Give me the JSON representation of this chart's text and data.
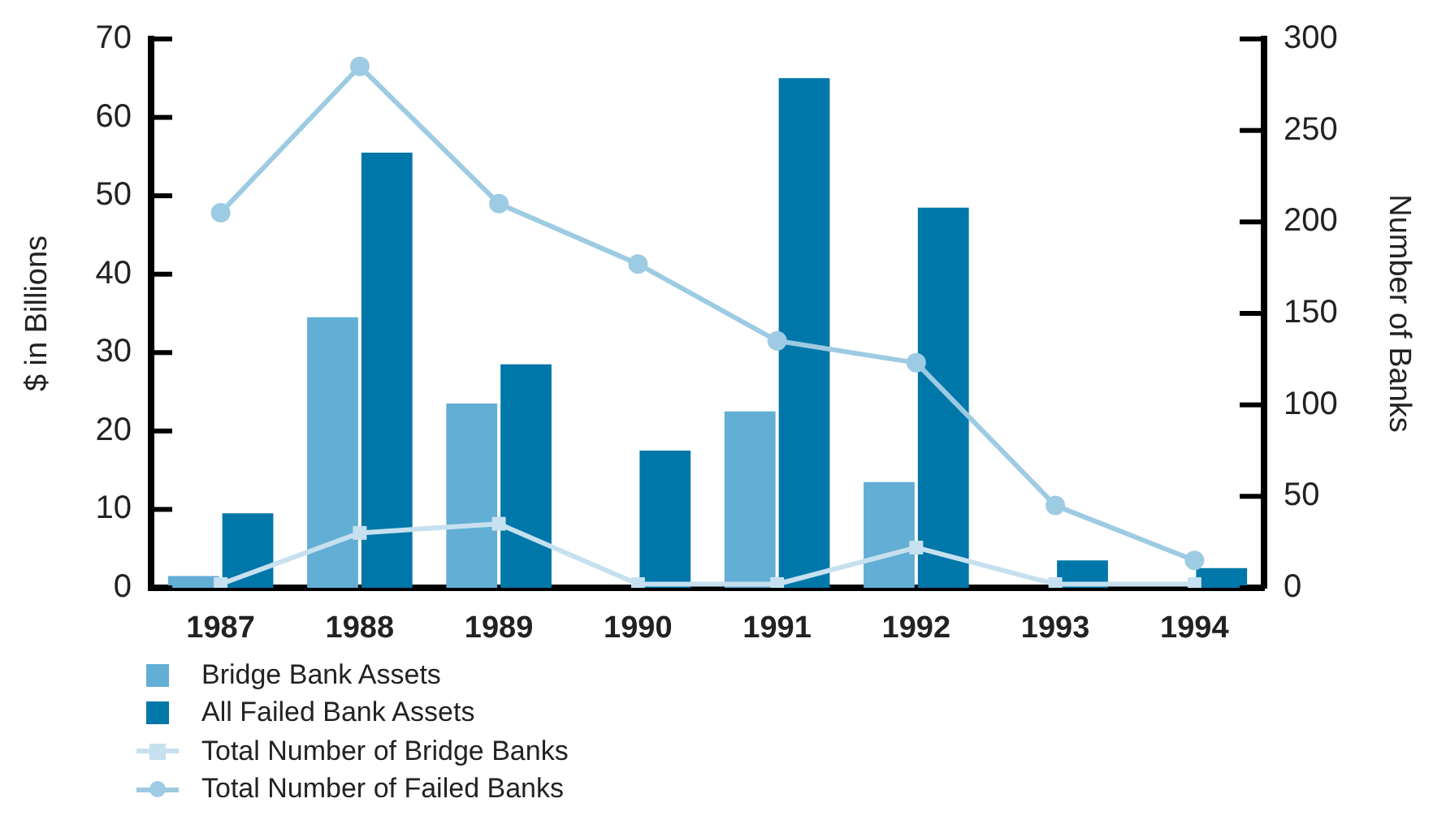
{
  "chart_data": {
    "type": "bar",
    "categories": [
      "1987",
      "1988",
      "1989",
      "1990",
      "1991",
      "1992",
      "1993",
      "1994"
    ],
    "ylabel": "$ in Billions",
    "y2label": "Number of Banks",
    "ylim": [
      0,
      70
    ],
    "yticks": [
      0,
      10,
      20,
      30,
      40,
      50,
      60,
      70
    ],
    "y2lim": [
      0,
      300
    ],
    "y2ticks": [
      0,
      50,
      100,
      150,
      200,
      250,
      300
    ],
    "grid": false,
    "legend": "bottom left",
    "series": [
      {
        "name": "Bridge Bank Assets",
        "color": "#62aed4",
        "values": [
          1.5,
          34.5,
          23.5,
          null,
          22.5,
          13.5,
          null,
          null
        ]
      },
      {
        "name": "All Failed Bank Assets",
        "color": "#0077a9",
        "values": [
          9.5,
          55.5,
          28.5,
          17.5,
          65,
          48.5,
          3.5,
          2.5
        ]
      },
      {
        "name": "Total Number of Bridge Banks",
        "type": "line",
        "axis": "y2",
        "marker": "square",
        "color": "#c6e0ef",
        "values": [
          2,
          30,
          35,
          2,
          2,
          22,
          2,
          2
        ]
      },
      {
        "name": "Total Number of Failed Banks",
        "type": "line",
        "axis": "y2",
        "marker": "circle",
        "color": "#9dcbe3",
        "values": [
          205,
          285,
          210,
          177,
          135,
          123,
          45,
          15
        ]
      }
    ]
  }
}
